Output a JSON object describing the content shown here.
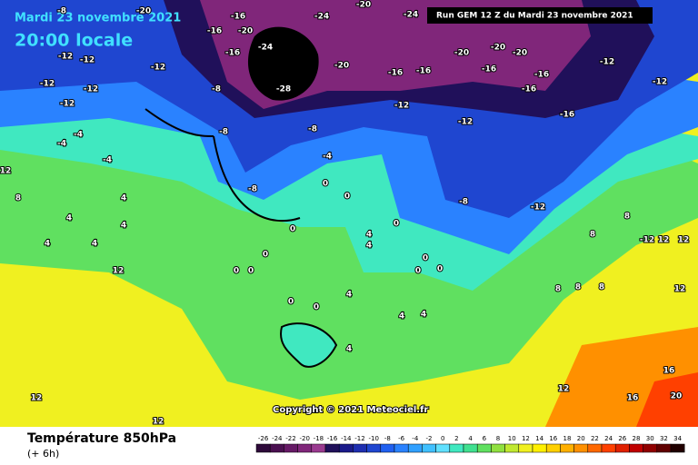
{
  "header": {
    "date": "Mardi 23 novembre 2021",
    "time": "20:00 locale",
    "run": "Run GEM 12 Z du Mardi 23 novembre 2021"
  },
  "map": {
    "copyright": "Copyright © 2021 Meteociel.fr",
    "labels": [
      -8,
      -20,
      -16,
      -24,
      -20,
      -24,
      -16,
      -20,
      -12,
      -12,
      -12,
      -16,
      -24,
      -20,
      -16,
      -16,
      -20,
      -20,
      -16,
      -20,
      -16,
      -16,
      -12,
      -12,
      -28,
      -8,
      -12,
      -12,
      -12,
      -12,
      -12,
      -16,
      -8,
      -8,
      -4,
      -4,
      -4,
      -4,
      -8,
      0,
      0,
      -8,
      -12,
      4,
      4,
      4,
      4,
      4,
      0,
      0,
      0,
      0,
      4,
      4,
      0,
      0,
      0,
      0,
      8,
      -12,
      12,
      12,
      12,
      8,
      8,
      8,
      4,
      0,
      0,
      4,
      4,
      4,
      12,
      12,
      12,
      16,
      16,
      20,
      12,
      8,
      12,
      8
    ]
  },
  "legend": {
    "title": "Température 850hPa",
    "step": "(+ 6h)",
    "values": [
      -26,
      -24,
      -22,
      -20,
      -18,
      -16,
      -14,
      -12,
      -10,
      -8,
      -6,
      -4,
      -2,
      0,
      2,
      4,
      6,
      8,
      10,
      12,
      14,
      16,
      18,
      20,
      22,
      24,
      26,
      28,
      30,
      32,
      34
    ],
    "colors": [
      "#2e0a3a",
      "#4a1050",
      "#661a66",
      "#80267a",
      "#9a3a90",
      "#20105a",
      "#1a1a8a",
      "#1e2eb0",
      "#1f46d0",
      "#2060f0",
      "#2a82ff",
      "#30a0ff",
      "#40c0ff",
      "#60e0ff",
      "#40e8c0",
      "#40e090",
      "#60e060",
      "#90e040",
      "#c0e830",
      "#f0f020",
      "#fff000",
      "#ffd000",
      "#ffb000",
      "#ff9000",
      "#ff6800",
      "#ff4000",
      "#e02000",
      "#c00000",
      "#900000",
      "#600000",
      "#200000"
    ]
  }
}
